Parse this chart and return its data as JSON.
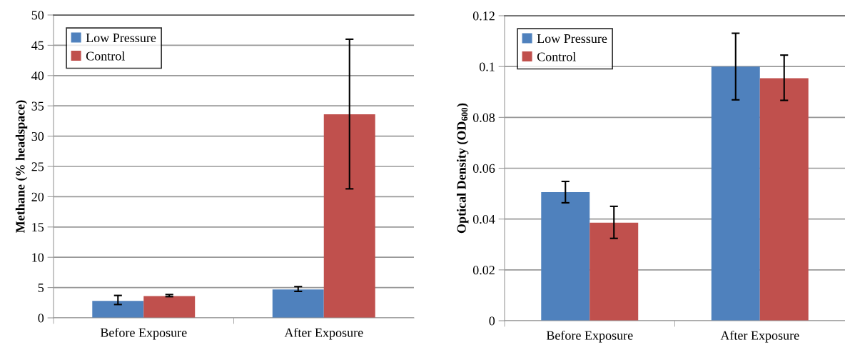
{
  "chart_data": [
    {
      "type": "bar",
      "ylabel": "Methane (% headspace)",
      "categories": [
        "Before Exposure",
        "After Exposure"
      ],
      "series": [
        {
          "name": "Low Pressure",
          "color": "#4f81bd",
          "values": [
            2.8,
            4.7
          ],
          "errors": [
            [
              2.2,
              3.7
            ],
            [
              4.37,
              5.16
            ]
          ]
        },
        {
          "name": "Control",
          "color": "#c0504d",
          "values": [
            3.6,
            33.6
          ],
          "errors": [
            [
              3.5,
              3.85
            ],
            [
              21.3,
              46.0
            ]
          ]
        }
      ],
      "ylim": [
        0,
        50
      ],
      "yticks": [
        0,
        5,
        10,
        15,
        20,
        25,
        30,
        35,
        40,
        45,
        50
      ],
      "grid": "y",
      "legend": "top left"
    },
    {
      "type": "bar",
      "ylabel": "Optical Density (OD$_{600}$)",
      "categories": [
        "Before Exposure",
        "After Exposure"
      ],
      "series": [
        {
          "name": "Low Pressure",
          "color": "#4f81bd",
          "values": [
            0.0506,
            0.1
          ],
          "errors": [
            [
              0.0464,
              0.0548
            ],
            [
              0.0869,
              0.1131
            ]
          ]
        },
        {
          "name": "Control",
          "color": "#c0504d",
          "values": [
            0.0386,
            0.0954
          ],
          "errors": [
            [
              0.0324,
              0.045
            ],
            [
              0.0867,
              0.1045
            ]
          ]
        }
      ],
      "ylim": [
        0,
        0.12
      ],
      "yticks": [
        0,
        0.02,
        0.04,
        0.06,
        0.08,
        0.1,
        0.12
      ],
      "grid": "y",
      "legend": "top left"
    }
  ]
}
